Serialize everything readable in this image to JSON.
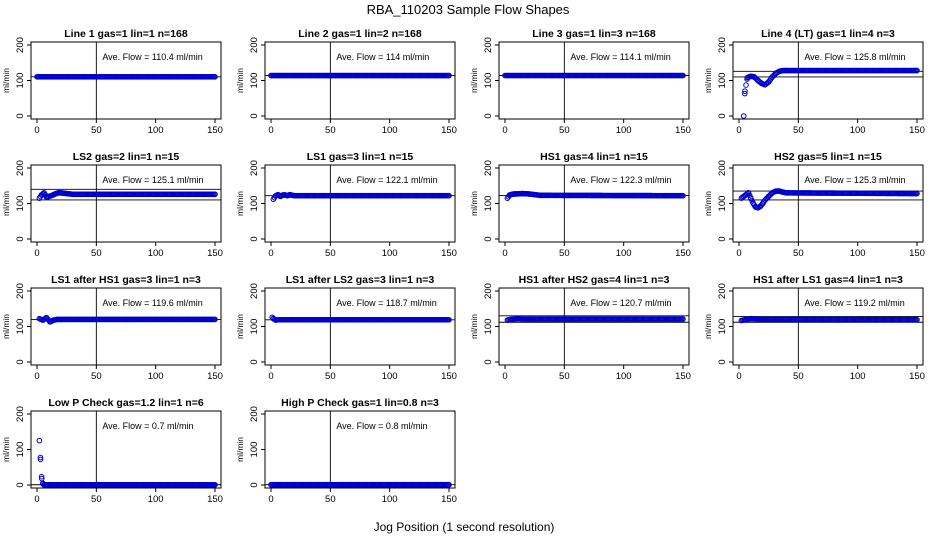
{
  "title": "RBA_110203  Sample Flow Shapes",
  "xlabel": "Jog Position (1 second resolution)",
  "colors": {
    "points": "#0000cc",
    "lines": "#000000"
  },
  "chart_data": [
    {
      "type": "scatter",
      "title": "Line 1 gas=1 lin=1 n=168",
      "ylabel": "ml/min",
      "annotation": "Ave. Flow =  110.4  ml/min",
      "xlim": [
        0,
        150
      ],
      "ylim": [
        0,
        200
      ],
      "xticks": [
        0,
        50,
        100,
        150
      ],
      "yticks": [
        0,
        100,
        200
      ],
      "vline": 50,
      "hlines": [
        110.4
      ],
      "x": [
        0,
        150
      ],
      "y": [
        110.4,
        110.4
      ]
    },
    {
      "type": "scatter",
      "title": "Line 2 gas=1 lin=2 n=168",
      "ylabel": "ml/min",
      "annotation": "Ave. Flow =  114  ml/min",
      "xlim": [
        0,
        150
      ],
      "ylim": [
        0,
        200
      ],
      "xticks": [
        0,
        50,
        100,
        150
      ],
      "yticks": [
        0,
        100,
        200
      ],
      "vline": 50,
      "hlines": [
        114
      ],
      "x": [
        0,
        150
      ],
      "y": [
        114,
        114
      ]
    },
    {
      "type": "scatter",
      "title": "Line 3 gas=1 lin=3 n=168",
      "ylabel": "ml/min",
      "annotation": "Ave. Flow =  114.1  ml/min",
      "xlim": [
        0,
        150
      ],
      "ylim": [
        0,
        200
      ],
      "xticks": [
        0,
        50,
        100,
        150
      ],
      "yticks": [
        0,
        100,
        200
      ],
      "vline": 50,
      "hlines": [
        114.1
      ],
      "x": [
        0,
        150
      ],
      "y": [
        114.1,
        114.1
      ]
    },
    {
      "type": "scatter",
      "title": "Line 4 (LT) gas=1 lin=4 n=3",
      "ylabel": "ml/min",
      "annotation": "Ave. Flow =  125.8  ml/min",
      "xlim": [
        0,
        150
      ],
      "ylim": [
        0,
        200
      ],
      "xticks": [
        0,
        50,
        100,
        150
      ],
      "yticks": [
        0,
        100,
        200
      ],
      "vline": 50,
      "hlines": [
        110,
        125.8
      ],
      "x": [
        4,
        5,
        7,
        10,
        13,
        16,
        19,
        22,
        25,
        28,
        31,
        34,
        37,
        40,
        150
      ],
      "y": [
        0,
        70,
        108,
        112,
        110,
        100,
        92,
        88,
        96,
        110,
        120,
        126,
        128,
        128,
        128
      ]
    },
    {
      "type": "scatter",
      "title": "LS2 gas=2 lin=1 n=15",
      "ylabel": "ml/min",
      "annotation": "Ave. Flow =  125.1  ml/min",
      "xlim": [
        0,
        150
      ],
      "ylim": [
        0,
        200
      ],
      "xticks": [
        0,
        50,
        100,
        150
      ],
      "yticks": [
        0,
        100,
        200
      ],
      "vline": 50,
      "hlines": [
        110,
        140
      ],
      "x": [
        2,
        4,
        6,
        8,
        10,
        12,
        14,
        16,
        18,
        20,
        25,
        30,
        150
      ],
      "y": [
        115,
        125,
        130,
        118,
        120,
        122,
        125,
        128,
        130,
        130,
        128,
        126,
        126
      ]
    },
    {
      "type": "scatter",
      "title": "LS1 gas=3 lin=1 n=15",
      "ylabel": "ml/min",
      "annotation": "Ave. Flow =  122.1  ml/min",
      "xlim": [
        0,
        150
      ],
      "ylim": [
        0,
        200
      ],
      "xticks": [
        0,
        50,
        100,
        150
      ],
      "yticks": [
        0,
        100,
        200
      ],
      "vline": 50,
      "hlines": [
        122.1
      ],
      "x": [
        2,
        4,
        6,
        8,
        10,
        12,
        14,
        16,
        18,
        20,
        150
      ],
      "y": [
        112,
        122,
        125,
        120,
        124,
        124,
        122,
        125,
        123,
        122,
        122
      ]
    },
    {
      "type": "scatter",
      "title": "HS1 gas=4 lin=1 n=15",
      "ylabel": "ml/min",
      "annotation": "Ave. Flow =  122.3  ml/min",
      "xlim": [
        0,
        150
      ],
      "ylim": [
        0,
        200
      ],
      "xticks": [
        0,
        50,
        100,
        150
      ],
      "yticks": [
        0,
        100,
        200
      ],
      "vline": 50,
      "hlines": [
        122.3
      ],
      "x": [
        2,
        4,
        6,
        8,
        10,
        15,
        20,
        25,
        30,
        150
      ],
      "y": [
        115,
        124,
        126,
        127,
        127,
        128,
        127,
        125,
        123,
        122
      ]
    },
    {
      "type": "scatter",
      "title": "HS2 gas=5 lin=1 n=15",
      "ylabel": "ml/min",
      "annotation": "Ave. Flow =  125.3  ml/min",
      "xlim": [
        0,
        150
      ],
      "ylim": [
        0,
        200
      ],
      "xticks": [
        0,
        50,
        100,
        150
      ],
      "yticks": [
        0,
        100,
        200
      ],
      "vline": 50,
      "hlines": [
        110,
        135
      ],
      "x": [
        2,
        4,
        6,
        8,
        10,
        12,
        14,
        16,
        18,
        20,
        22,
        25,
        28,
        31,
        34,
        37,
        40,
        150
      ],
      "y": [
        115,
        120,
        125,
        130,
        115,
        100,
        90,
        88,
        92,
        100,
        110,
        120,
        130,
        135,
        135,
        132,
        130,
        128
      ]
    },
    {
      "type": "scatter",
      "title": "LS1 after HS1 gas=3 lin=1 n=3",
      "ylabel": "ml/min",
      "annotation": "Ave. Flow =  119.6  ml/min",
      "xlim": [
        0,
        150
      ],
      "ylim": [
        0,
        200
      ],
      "xticks": [
        0,
        50,
        100,
        150
      ],
      "yticks": [
        0,
        100,
        200
      ],
      "vline": 50,
      "hlines": [
        119.6
      ],
      "x": [
        2,
        5,
        8,
        11,
        14,
        17,
        150
      ],
      "y": [
        122,
        118,
        125,
        113,
        118,
        120,
        120
      ]
    },
    {
      "type": "scatter",
      "title": "LS1 after LS2 gas=3 lin=1 n=3",
      "ylabel": "ml/min",
      "annotation": "Ave. Flow =  118.7  ml/min",
      "xlim": [
        0,
        150
      ],
      "ylim": [
        0,
        200
      ],
      "xticks": [
        0,
        50,
        100,
        150
      ],
      "yticks": [
        0,
        100,
        200
      ],
      "vline": 50,
      "hlines": [
        118.7
      ],
      "x": [
        1,
        2,
        4,
        6,
        150
      ],
      "y": [
        126,
        122,
        118,
        119,
        119
      ]
    },
    {
      "type": "scatter",
      "title": "HS1 after HS2 gas=4 lin=1 n=3",
      "ylabel": "ml/min",
      "annotation": "Ave. Flow =  120.7  ml/min",
      "xlim": [
        0,
        150
      ],
      "ylim": [
        0,
        200
      ],
      "xticks": [
        0,
        50,
        100,
        150
      ],
      "yticks": [
        0,
        100,
        200
      ],
      "vline": 50,
      "hlines": [
        112,
        130
      ],
      "x": [
        2,
        5,
        10,
        15,
        20,
        150
      ],
      "y": [
        118,
        120,
        122,
        121,
        121,
        121
      ]
    },
    {
      "type": "scatter",
      "title": "HS1 after LS1 gas=4 lin=1 n=3",
      "ylabel": "ml/min",
      "annotation": "Ave. Flow =  119.2  ml/min",
      "xlim": [
        0,
        150
      ],
      "ylim": [
        0,
        200
      ],
      "xticks": [
        0,
        50,
        100,
        150
      ],
      "yticks": [
        0,
        100,
        200
      ],
      "vline": 50,
      "hlines": [
        112,
        128
      ],
      "x": [
        2,
        5,
        10,
        15,
        20,
        150
      ],
      "y": [
        117,
        119,
        122,
        121,
        120,
        119
      ]
    },
    {
      "type": "scatter",
      "title": "Low P Check gas=1.2 lin=1 n=6",
      "ylabel": "ml/min",
      "annotation": "Ave. Flow =  0.7  ml/min",
      "xlim": [
        0,
        150
      ],
      "ylim": [
        0,
        200
      ],
      "xticks": [
        0,
        50,
        100,
        150
      ],
      "yticks": [
        0,
        100,
        200
      ],
      "vline": 50,
      "hlines": [
        0.7
      ],
      "x": [
        2,
        3,
        4,
        5,
        6,
        150
      ],
      "y": [
        125,
        72,
        18,
        3,
        0.7,
        0.7
      ]
    },
    {
      "type": "scatter",
      "title": "High P Check gas=1 lin=0.8 n=3",
      "ylabel": "ml/min",
      "annotation": "Ave. Flow =  0.8  ml/min",
      "xlim": [
        0,
        150
      ],
      "ylim": [
        0,
        200
      ],
      "xticks": [
        0,
        50,
        100,
        150
      ],
      "yticks": [
        0,
        100,
        200
      ],
      "vline": 50,
      "hlines": [
        0.8
      ],
      "x": [
        0,
        150
      ],
      "y": [
        0.8,
        0.8
      ]
    }
  ]
}
